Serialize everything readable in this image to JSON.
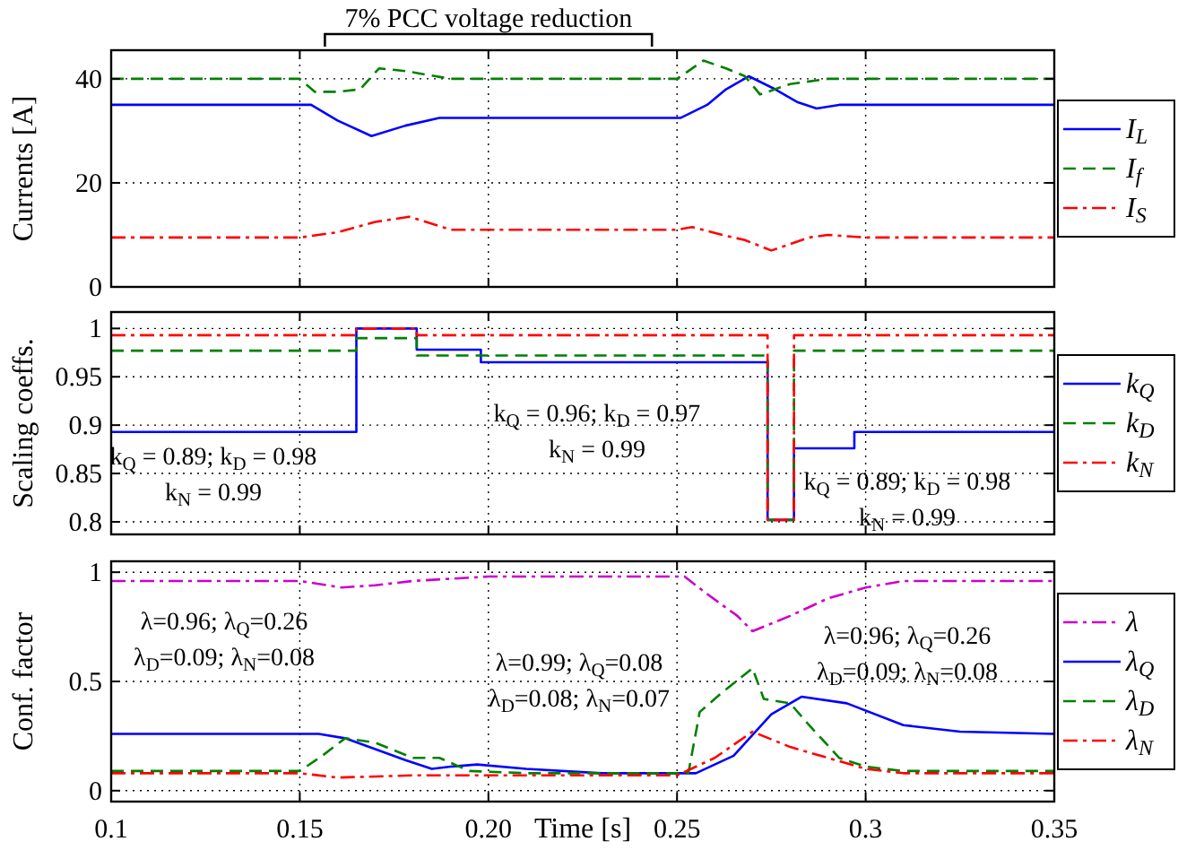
{
  "chart_data": [
    {
      "type": "line",
      "ylabel": "Currents [A]",
      "xlim": [
        0.1,
        0.35
      ],
      "ylim": [
        0,
        45.5
      ],
      "xticks": [
        0.1,
        0.15,
        0.2,
        0.25,
        0.3,
        0.35
      ],
      "yticks": [
        0,
        20,
        40
      ],
      "tick_labels": "y",
      "grid": true,
      "legend": "right",
      "annotations": [
        "7% PCC voltage reduction"
      ],
      "series": [
        {
          "name": "I$_{L}$",
          "color": "#0000ff",
          "line_style": "solid",
          "x": [
            0.1,
            0.153,
            0.16,
            0.169,
            0.178,
            0.187,
            0.251,
            0.258,
            0.263,
            0.269,
            0.276,
            0.282,
            0.287,
            0.293,
            0.35
          ],
          "values": [
            35,
            35,
            32,
            29,
            31,
            32.5,
            32.5,
            35,
            38,
            40.5,
            38,
            35.5,
            34.3,
            35,
            35
          ]
        },
        {
          "name": "I$_{f}$",
          "color": "#008000",
          "line_style": "dashed",
          "x": [
            0.1,
            0.15,
            0.154,
            0.16,
            0.166,
            0.171,
            0.178,
            0.19,
            0.25,
            0.257,
            0.263,
            0.268,
            0.272,
            0.28,
            0.29,
            0.35
          ],
          "values": [
            40,
            40,
            37.5,
            37.5,
            38,
            42,
            41.5,
            40,
            40,
            43.5,
            42,
            40.5,
            37,
            39,
            40,
            40
          ]
        },
        {
          "name": "I$_{S}$",
          "color": "#ff0000",
          "line_style": "dashdot",
          "x": [
            0.1,
            0.15,
            0.16,
            0.17,
            0.179,
            0.19,
            0.25,
            0.254,
            0.262,
            0.268,
            0.275,
            0.285,
            0.29,
            0.3,
            0.35
          ],
          "values": [
            9.5,
            9.5,
            10.5,
            12.5,
            13.5,
            11,
            11,
            11.5,
            10,
            9,
            7,
            9.5,
            10,
            9.5,
            9.5
          ]
        }
      ]
    },
    {
      "type": "step",
      "ylabel": "Scaling coeffs.",
      "xlim": [
        0.1,
        0.35
      ],
      "ylim": [
        0.787,
        1.017
      ],
      "xticks": [
        0.1,
        0.15,
        0.2,
        0.25,
        0.3,
        0.35
      ],
      "yticks": [
        0.8,
        0.85,
        0.9,
        0.95,
        1
      ],
      "tick_labels": "y",
      "grid": true,
      "legend": "right",
      "annotations": [
        "k$_{Q}$ = 0.89; k$_{D}$ = 0.98",
        "k$_{N}$ = 0.99",
        "k$_{Q}$ = 0.96; k$_{D}$ = 0.97",
        "k$_{N}$ = 0.99",
        "k$_{Q}$ = 0.89; k$_{D}$ = 0.98",
        "k$_{N}$ = 0.99"
      ],
      "series": [
        {
          "name": "k$_{Q}$",
          "color": "#0000ff",
          "line_style": "solid",
          "x": [
            0.1,
            0.165,
            0.181,
            0.198,
            0.274,
            0.281,
            0.297,
            0.35
          ],
          "values": [
            0.893,
            1,
            0.978,
            0.965,
            0.802,
            0.876,
            0.893,
            0.893
          ]
        },
        {
          "name": "k$_{D}$",
          "color": "#008000",
          "line_style": "dashed",
          "x": [
            0.1,
            0.165,
            0.181,
            0.274,
            0.281,
            0.35
          ],
          "values": [
            0.977,
            0.99,
            0.972,
            0.802,
            0.977,
            0.977
          ]
        },
        {
          "name": "k$_{N}$",
          "color": "#ff0000",
          "line_style": "dashdot",
          "x": [
            0.1,
            0.165,
            0.181,
            0.274,
            0.281,
            0.35
          ],
          "values": [
            0.993,
            1,
            0.993,
            0.802,
            0.993,
            0.993
          ]
        }
      ]
    },
    {
      "type": "line",
      "ylabel": "Conf. factor",
      "xlabel": "Time [s]",
      "xlim": [
        0.1,
        0.35
      ],
      "ylim": [
        -0.05,
        1.05
      ],
      "xticks": [
        0.1,
        0.15,
        {
          "value": 0.2,
          "label": "0.20"
        },
        0.25,
        0.3,
        0.35
      ],
      "yticks": [
        0,
        0.5,
        1
      ],
      "grid": true,
      "legend": "right",
      "annotations": [
        "λ=0.96; λ$_{Q}$=0.26",
        "λ$_{D}$=0.09; λ$_{N}$=0.08",
        "λ=0.99; λ$_{Q}$=0.08",
        "λ$_{D}$=0.08; λ$_{N}$=0.07",
        "λ=0.96; λ$_{Q}$=0.26",
        "λ$_{D}$=0.09; λ$_{N}$=0.08"
      ],
      "series": [
        {
          "name": "λ",
          "color": "#cc00cc",
          "line_style": "dashdot",
          "x": [
            0.1,
            0.15,
            0.161,
            0.17,
            0.18,
            0.2,
            0.252,
            0.258,
            0.266,
            0.27,
            0.28,
            0.29,
            0.3,
            0.31,
            0.35
          ],
          "values": [
            0.96,
            0.96,
            0.93,
            0.94,
            0.96,
            0.98,
            0.98,
            0.9,
            0.8,
            0.73,
            0.8,
            0.88,
            0.93,
            0.96,
            0.96
          ]
        },
        {
          "name": "λ$_{Q}$",
          "color": "#0000ff",
          "line_style": "solid",
          "x": [
            0.1,
            0.155,
            0.162,
            0.17,
            0.178,
            0.185,
            0.19,
            0.197,
            0.21,
            0.23,
            0.255,
            0.265,
            0.275,
            0.283,
            0.295,
            0.31,
            0.325,
            0.35
          ],
          "values": [
            0.26,
            0.26,
            0.24,
            0.19,
            0.14,
            0.1,
            0.11,
            0.12,
            0.1,
            0.08,
            0.08,
            0.16,
            0.35,
            0.43,
            0.4,
            0.3,
            0.27,
            0.26
          ]
        },
        {
          "name": "λ$_{D}$",
          "color": "#008000",
          "line_style": "dashed",
          "x": [
            0.1,
            0.15,
            0.156,
            0.162,
            0.17,
            0.18,
            0.187,
            0.195,
            0.21,
            0.253,
            0.256,
            0.262,
            0.27,
            0.273,
            0.28,
            0.285,
            0.293,
            0.3,
            0.31,
            0.35
          ],
          "values": [
            0.09,
            0.09,
            0.16,
            0.24,
            0.22,
            0.15,
            0.15,
            0.09,
            0.08,
            0.08,
            0.36,
            0.45,
            0.56,
            0.42,
            0.4,
            0.3,
            0.15,
            0.11,
            0.09,
            0.09
          ]
        },
        {
          "name": "λ$_{N}$",
          "color": "#ff0000",
          "line_style": "dashdot",
          "x": [
            0.1,
            0.15,
            0.16,
            0.18,
            0.25,
            0.26,
            0.27,
            0.28,
            0.29,
            0.3,
            0.31,
            0.35
          ],
          "values": [
            0.08,
            0.08,
            0.06,
            0.07,
            0.07,
            0.15,
            0.27,
            0.2,
            0.15,
            0.1,
            0.08,
            0.08
          ]
        }
      ]
    }
  ]
}
